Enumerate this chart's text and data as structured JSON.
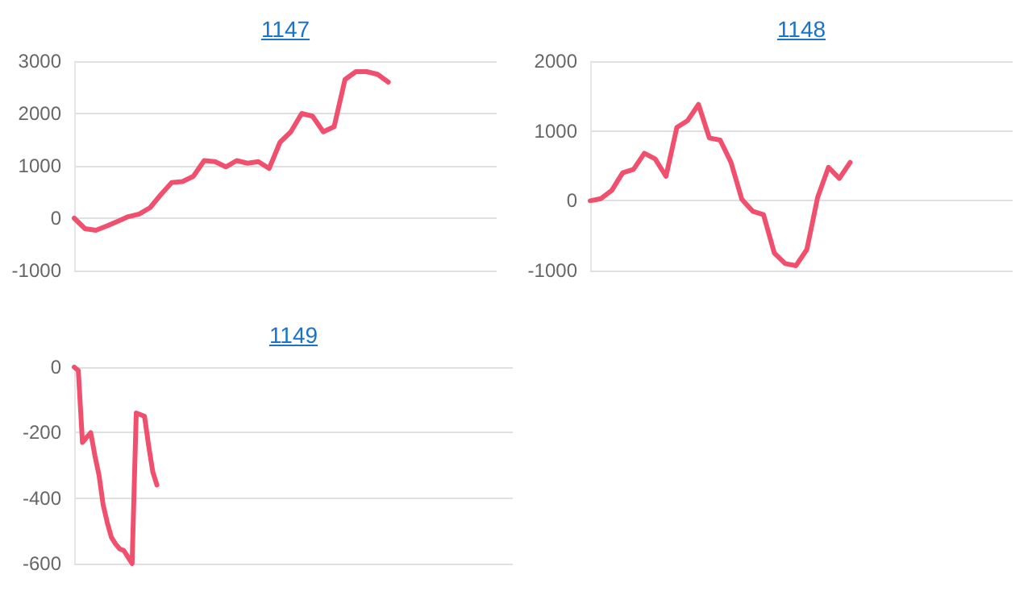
{
  "chart_data": [
    {
      "type": "line",
      "title": "1147",
      "categories": [
        null,
        null,
        null,
        null,
        null,
        null,
        null,
        null,
        null,
        null,
        null,
        null,
        null,
        null,
        null,
        null,
        null,
        null,
        null,
        null,
        null,
        null,
        null,
        null,
        null,
        null,
        null,
        null,
        null,
        null,
        null,
        null,
        null,
        null,
        null,
        null,
        null,
        null,
        null,
        null
      ],
      "series": [
        {
          "color": "#f0506e",
          "values": [
            0,
            -200,
            -230,
            -150,
            -60,
            30,
            80,
            200,
            450,
            680,
            700,
            800,
            1100,
            1080,
            980,
            1100,
            1050,
            1080,
            950,
            1450,
            1650,
            2000,
            1950,
            1650,
            1750,
            2650,
            2800,
            2800,
            2750,
            2600,
            null,
            null,
            null,
            null,
            null,
            null,
            null,
            null,
            null,
            null
          ]
        }
      ],
      "ylim": [
        -1000,
        3000
      ],
      "yticks": [
        -1000,
        0,
        1000,
        2000,
        3000
      ],
      "grid": "y",
      "tick_labels": "y",
      "line_style": "solid",
      "legend": false
    },
    {
      "type": "line",
      "title": "1148",
      "categories": [
        null,
        null,
        null,
        null,
        null,
        null,
        null,
        null,
        null,
        null,
        null,
        null,
        null,
        null,
        null,
        null,
        null,
        null,
        null,
        null,
        null,
        null,
        null,
        null,
        null,
        null,
        null,
        null,
        null,
        null,
        null,
        null,
        null,
        null,
        null,
        null,
        null,
        null,
        null,
        null
      ],
      "series": [
        {
          "color": "#f0506e",
          "values": [
            0,
            30,
            150,
            400,
            450,
            680,
            600,
            350,
            1050,
            1150,
            1380,
            900,
            870,
            550,
            20,
            -150,
            -200,
            -750,
            -900,
            -930,
            -700,
            50,
            480,
            320,
            550,
            null,
            null,
            null,
            null,
            null,
            null,
            null,
            null,
            null,
            null,
            null,
            null,
            null,
            null,
            null
          ]
        }
      ],
      "ylim": [
        -1000,
        2000
      ],
      "yticks": [
        -1000,
        0,
        1000,
        2000
      ],
      "grid": "y",
      "tick_labels": "y",
      "line_style": "solid",
      "legend": false
    },
    {
      "type": "line",
      "title": "1149",
      "categories": [
        null,
        null,
        null,
        null,
        null,
        null,
        null,
        null,
        null,
        null,
        null,
        null,
        null,
        null,
        null,
        null,
        null,
        null,
        null,
        null,
        null,
        null,
        null,
        null,
        null,
        null,
        null,
        null,
        null,
        null,
        null,
        null,
        null,
        null,
        null,
        null,
        null,
        null,
        null,
        null,
        null,
        null,
        null,
        null,
        null,
        null,
        null,
        null,
        null,
        null,
        null,
        null,
        null,
        null,
        null,
        null,
        null,
        null,
        null,
        null,
        null,
        null,
        null,
        null,
        null,
        null,
        null,
        null,
        null,
        null,
        null,
        null,
        null,
        null,
        null,
        null,
        null,
        null,
        null,
        null,
        null,
        null,
        null,
        null,
        null,
        null,
        null,
        null,
        null,
        null,
        null,
        null,
        null,
        null,
        null,
        null,
        null,
        null,
        null,
        null,
        null,
        null,
        null,
        null,
        null,
        null,
        null
      ],
      "series": [
        {
          "color": "#f0506e",
          "values": [
            0,
            -10,
            -230,
            -215,
            -200,
            -270,
            -330,
            -420,
            -475,
            -520,
            -540,
            -555,
            -560,
            -580,
            -600,
            -140,
            -145,
            -150,
            -240,
            -320,
            -360,
            null,
            null,
            null,
            null,
            null,
            null,
            null,
            null,
            null,
            null,
            null,
            null,
            null,
            null,
            null,
            null,
            null,
            null,
            null,
            null,
            null,
            null,
            null,
            null,
            null,
            null,
            null,
            null,
            null,
            null,
            null,
            null,
            null,
            null,
            null,
            null,
            null,
            null,
            null,
            null,
            null,
            null,
            null,
            null,
            null,
            null,
            null,
            null,
            null,
            null,
            null,
            null,
            null,
            null,
            null,
            null,
            null,
            null,
            null,
            null,
            null,
            null,
            null,
            null,
            null,
            null,
            null,
            null,
            null,
            null,
            null,
            null,
            null,
            null,
            null,
            null,
            null,
            null,
            null,
            null,
            null,
            null,
            null,
            null,
            null,
            null
          ]
        }
      ],
      "ylim": [
        -600,
        0
      ],
      "yticks": [
        -600,
        -400,
        -200,
        0
      ],
      "grid": "y",
      "tick_labels": "y",
      "line_style": "solid",
      "legend": false
    }
  ]
}
